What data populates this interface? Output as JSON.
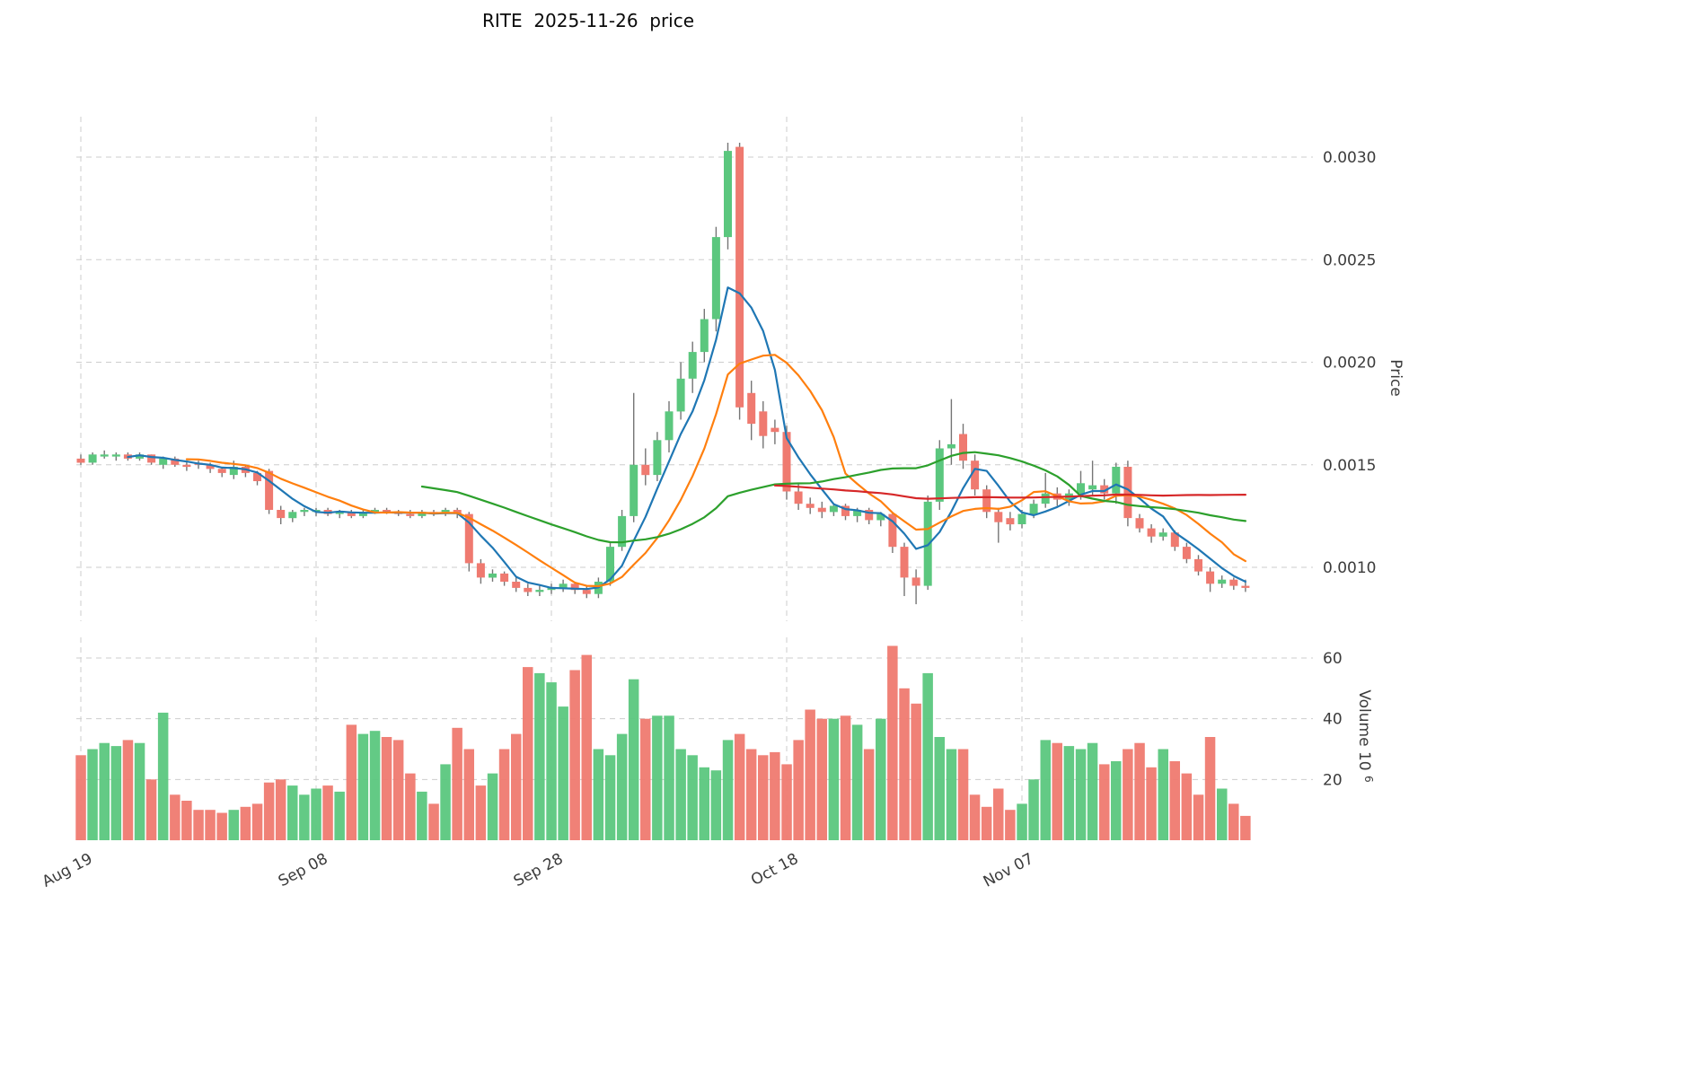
{
  "chart_data": {
    "type": "candlestick",
    "title": "RITE  2025-11-26  price",
    "price_scale": 1e-05,
    "volume_unit": 1000000,
    "ylabel_price": "Price",
    "volume_label": {
      "text": "Volume  10",
      "exp": "6"
    },
    "x_ticks": [
      {
        "index": 0,
        "label": "Aug 19"
      },
      {
        "index": 20,
        "label": "Sep 08"
      },
      {
        "index": 40,
        "label": "Sep 28"
      },
      {
        "index": 60,
        "label": "Oct 18"
      },
      {
        "index": 80,
        "label": "Nov 07"
      }
    ],
    "price_ticks": [
      {
        "value": 100,
        "label": "0.0010"
      },
      {
        "value": 150,
        "label": "0.0015"
      },
      {
        "value": 200,
        "label": "0.0020"
      },
      {
        "value": 250,
        "label": "0.0025"
      },
      {
        "value": 300,
        "label": "0.0030"
      }
    ],
    "volume_ticks": [
      {
        "value": 20,
        "label": "20"
      },
      {
        "value": 40,
        "label": "40"
      },
      {
        "value": 60,
        "label": "60"
      }
    ],
    "colors": {
      "up": "#5bc77e",
      "down": "#ef7a70",
      "wick": "#757575",
      "grid": "#cdcdcd"
    },
    "moving_averages": [
      {
        "period": 5,
        "color": "#1f77b4"
      },
      {
        "period": 10,
        "color": "#ff7f0e"
      },
      {
        "period": 30,
        "color": "#2ca02c"
      },
      {
        "period": 60,
        "color": "#d62728"
      }
    ],
    "candles": [
      [
        153,
        155,
        150,
        151,
        28
      ],
      [
        151,
        156,
        150,
        155,
        30
      ],
      [
        154,
        157,
        153,
        155,
        32
      ],
      [
        154,
        156,
        152,
        155,
        31
      ],
      [
        155,
        156,
        152,
        153,
        33
      ],
      [
        153,
        156,
        152,
        155,
        32
      ],
      [
        155,
        155,
        150,
        151,
        20
      ],
      [
        150,
        154,
        148,
        153,
        42
      ],
      [
        153,
        154,
        149,
        150,
        15
      ],
      [
        150,
        152,
        147,
        149,
        13
      ],
      [
        151,
        152,
        148,
        150,
        10
      ],
      [
        150,
        151,
        146,
        148,
        10
      ],
      [
        148,
        149,
        144,
        146,
        9
      ],
      [
        145,
        152,
        143,
        149,
        10
      ],
      [
        149,
        150,
        144,
        146,
        11
      ],
      [
        146,
        147,
        140,
        142,
        12
      ],
      [
        147,
        148,
        126,
        128,
        19
      ],
      [
        128,
        130,
        121,
        124,
        20
      ],
      [
        124,
        128,
        122,
        127,
        18
      ],
      [
        127,
        129,
        125,
        128,
        15
      ],
      [
        127,
        129,
        125,
        128,
        17
      ],
      [
        128,
        129,
        125,
        126,
        18
      ],
      [
        126,
        128,
        124,
        127,
        16
      ],
      [
        127,
        128,
        124,
        125,
        38
      ],
      [
        125,
        128,
        124,
        127,
        35
      ],
      [
        127,
        129,
        126,
        128,
        36
      ],
      [
        128,
        129,
        126,
        127,
        34
      ],
      [
        127,
        128,
        125,
        126,
        33
      ],
      [
        126,
        128,
        124,
        125,
        22
      ],
      [
        125,
        128,
        124,
        127,
        16
      ],
      [
        127,
        128,
        125,
        126,
        12
      ],
      [
        126,
        129,
        125,
        128,
        25
      ],
      [
        128,
        129,
        124,
        126,
        37
      ],
      [
        126,
        127,
        98,
        102,
        30
      ],
      [
        102,
        104,
        92,
        95,
        18
      ],
      [
        95,
        99,
        93,
        97,
        22
      ],
      [
        97,
        98,
        91,
        93,
        30
      ],
      [
        93,
        95,
        88,
        90,
        35
      ],
      [
        90,
        92,
        86,
        88,
        57
      ],
      [
        88,
        91,
        86,
        89,
        55
      ],
      [
        89,
        92,
        87,
        90,
        52
      ],
      [
        90,
        94,
        88,
        92,
        44
      ],
      [
        92,
        93,
        87,
        89,
        56
      ],
      [
        89,
        91,
        85,
        87,
        61
      ],
      [
        87,
        95,
        85,
        93,
        30
      ],
      [
        93,
        112,
        91,
        110,
        28
      ],
      [
        110,
        128,
        108,
        125,
        35
      ],
      [
        125,
        185,
        122,
        150,
        53
      ],
      [
        150,
        158,
        140,
        145,
        40
      ],
      [
        145,
        166,
        142,
        162,
        41
      ],
      [
        162,
        181,
        156,
        176,
        41
      ],
      [
        176,
        200,
        172,
        192,
        30
      ],
      [
        192,
        210,
        185,
        205,
        28
      ],
      [
        205,
        226,
        200,
        221,
        24
      ],
      [
        221,
        266,
        215,
        261,
        23
      ],
      [
        261,
        307,
        255,
        303,
        33
      ],
      [
        305,
        307,
        172,
        178,
        35
      ],
      [
        185,
        191,
        162,
        170,
        30
      ],
      [
        176,
        181,
        158,
        164,
        28
      ],
      [
        168,
        172,
        160,
        166,
        29
      ],
      [
        166,
        169,
        133,
        137,
        25
      ],
      [
        137,
        141,
        128,
        131,
        33
      ],
      [
        131,
        134,
        126,
        129,
        43
      ],
      [
        129,
        132,
        124,
        127,
        40
      ],
      [
        127,
        131,
        125,
        130,
        40
      ],
      [
        130,
        131,
        123,
        125,
        41
      ],
      [
        125,
        129,
        122,
        128,
        38
      ],
      [
        128,
        129,
        121,
        123,
        30
      ],
      [
        123,
        127,
        120,
        126,
        40
      ],
      [
        126,
        127,
        107,
        110,
        64
      ],
      [
        110,
        112,
        86,
        95,
        50
      ],
      [
        95,
        99,
        82,
        91,
        45
      ],
      [
        91,
        135,
        89,
        132,
        55
      ],
      [
        132,
        162,
        128,
        158,
        34
      ],
      [
        158,
        182,
        150,
        160,
        30
      ],
      [
        165,
        170,
        148,
        152,
        30
      ],
      [
        152,
        155,
        135,
        138,
        15
      ],
      [
        138,
        140,
        124,
        127,
        11
      ],
      [
        127,
        129,
        112,
        122,
        17
      ],
      [
        124,
        127,
        118,
        121,
        10
      ],
      [
        121,
        128,
        119,
        126,
        12
      ],
      [
        126,
        133,
        124,
        131,
        20
      ],
      [
        131,
        146,
        129,
        136,
        33
      ],
      [
        136,
        139,
        130,
        133,
        32
      ],
      [
        133,
        138,
        130,
        136,
        31
      ],
      [
        136,
        147,
        133,
        141,
        30
      ],
      [
        138,
        152,
        135,
        140,
        32
      ],
      [
        140,
        143,
        133,
        136,
        25
      ],
      [
        136,
        151,
        131,
        149,
        26
      ],
      [
        149,
        152,
        120,
        124,
        30
      ],
      [
        124,
        126,
        117,
        119,
        32
      ],
      [
        119,
        121,
        112,
        115,
        24
      ],
      [
        115,
        119,
        113,
        117,
        30
      ],
      [
        117,
        118,
        108,
        110,
        26
      ],
      [
        110,
        112,
        102,
        104,
        22
      ],
      [
        104,
        106,
        96,
        98,
        15
      ],
      [
        98,
        100,
        88,
        92,
        34
      ],
      [
        92,
        96,
        90,
        94,
        17
      ],
      [
        94,
        95,
        89,
        91,
        12
      ],
      [
        91,
        94,
        88,
        90,
        8
      ]
    ]
  }
}
